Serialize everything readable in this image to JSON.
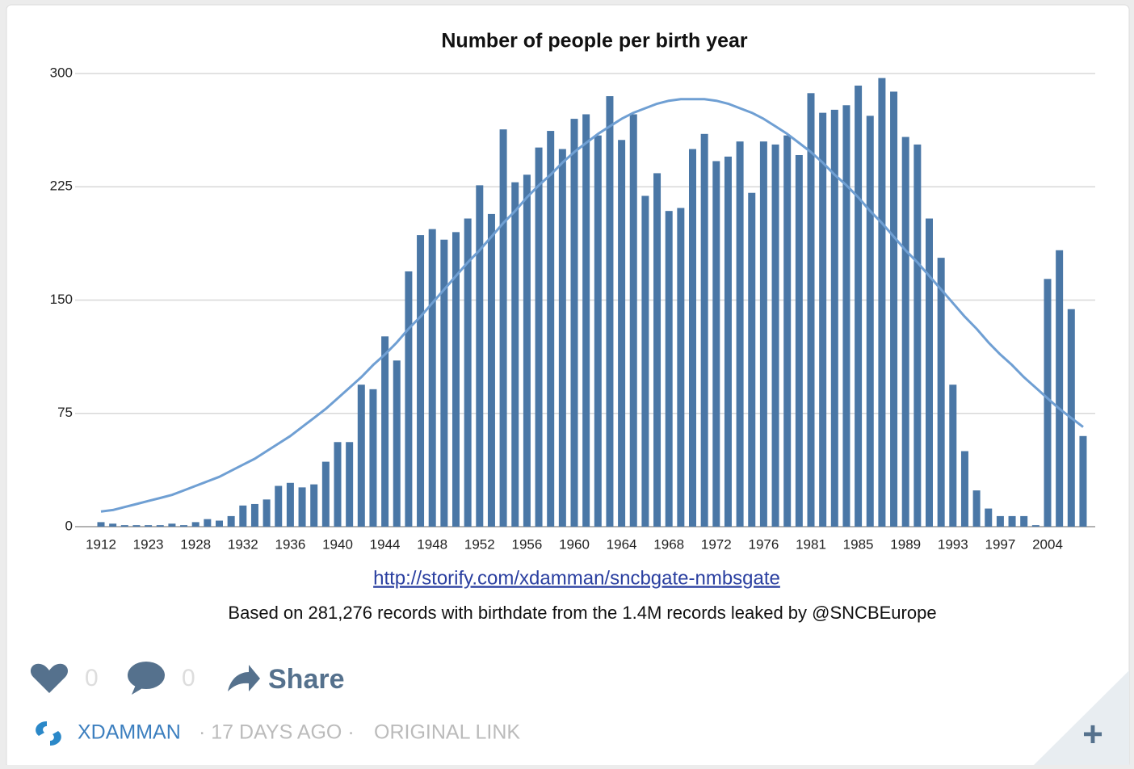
{
  "chart_data": {
    "type": "bar",
    "title": "Number of people per birth year",
    "subtitle": "http://storify.com/xdamman/sncbgate-nmbsgate",
    "note": "Based on 281,276 records with birthdate from the 1.4M records leaked by @SNCBEurope",
    "categories": [
      "1912",
      null,
      null,
      null,
      "1923",
      null,
      null,
      null,
      "1928",
      null,
      null,
      null,
      "1932",
      null,
      null,
      null,
      "1936",
      null,
      null,
      null,
      "1940",
      null,
      null,
      null,
      "1944",
      null,
      null,
      null,
      "1948",
      null,
      null,
      null,
      "1952",
      null,
      null,
      null,
      "1956",
      null,
      null,
      null,
      "1960",
      null,
      null,
      null,
      "1964",
      null,
      null,
      null,
      "1968",
      null,
      null,
      null,
      "1972",
      null,
      null,
      null,
      "1976",
      null,
      null,
      null,
      "1981",
      null,
      null,
      null,
      "1985",
      null,
      null,
      null,
      "1989",
      null,
      null,
      null,
      "1993",
      null,
      null,
      null,
      "1997",
      null,
      null,
      null,
      "2004",
      null,
      null,
      null
    ],
    "series": [
      {
        "type": "bar",
        "color": "#4a77a6",
        "values": [
          3,
          2,
          1,
          1,
          1,
          1,
          2,
          1,
          3,
          5,
          4,
          7,
          14,
          15,
          18,
          27,
          29,
          26,
          28,
          43,
          56,
          56,
          94,
          91,
          126,
          110,
          169,
          193,
          197,
          190,
          195,
          204,
          226,
          207,
          263,
          228,
          233,
          251,
          262,
          250,
          270,
          273,
          259,
          285,
          256,
          273,
          219,
          234,
          209,
          211,
          250,
          260,
          242,
          245,
          255,
          221,
          255,
          253,
          259,
          246,
          287,
          274,
          276,
          279,
          292,
          272,
          297,
          288,
          258,
          253,
          204,
          178,
          94,
          50,
          24,
          12,
          7,
          7,
          7,
          1,
          164,
          183,
          144,
          60
        ]
      },
      {
        "type": "line",
        "color": "#6f9fd3",
        "values": [
          10,
          11,
          13,
          15,
          17,
          19,
          21,
          24,
          27,
          30,
          33,
          37,
          41,
          45,
          50,
          55,
          60,
          66,
          72,
          78,
          85,
          92,
          99,
          107,
          114,
          122,
          131,
          139,
          148,
          157,
          166,
          175,
          183,
          192,
          201,
          209,
          218,
          226,
          233,
          241,
          248,
          254,
          260,
          265,
          270,
          274,
          277,
          280,
          282,
          283,
          283,
          283,
          282,
          280,
          277,
          274,
          270,
          265,
          260,
          254,
          248,
          241,
          233,
          226,
          218,
          209,
          201,
          192,
          183,
          175,
          166,
          157,
          148,
          139,
          131,
          122,
          114,
          107,
          99,
          92,
          85,
          78,
          72,
          66
        ]
      }
    ],
    "ylim": [
      0,
      300
    ],
    "yticks": [
      0,
      75,
      150,
      225,
      300
    ],
    "grid": true
  },
  "post": {
    "likes": "0",
    "comments": "0",
    "share": "Share",
    "author": "XDAMMAN",
    "time": "· 17 DAYS AGO ·",
    "link": "ORIGINAL LINK",
    "more": "+"
  }
}
